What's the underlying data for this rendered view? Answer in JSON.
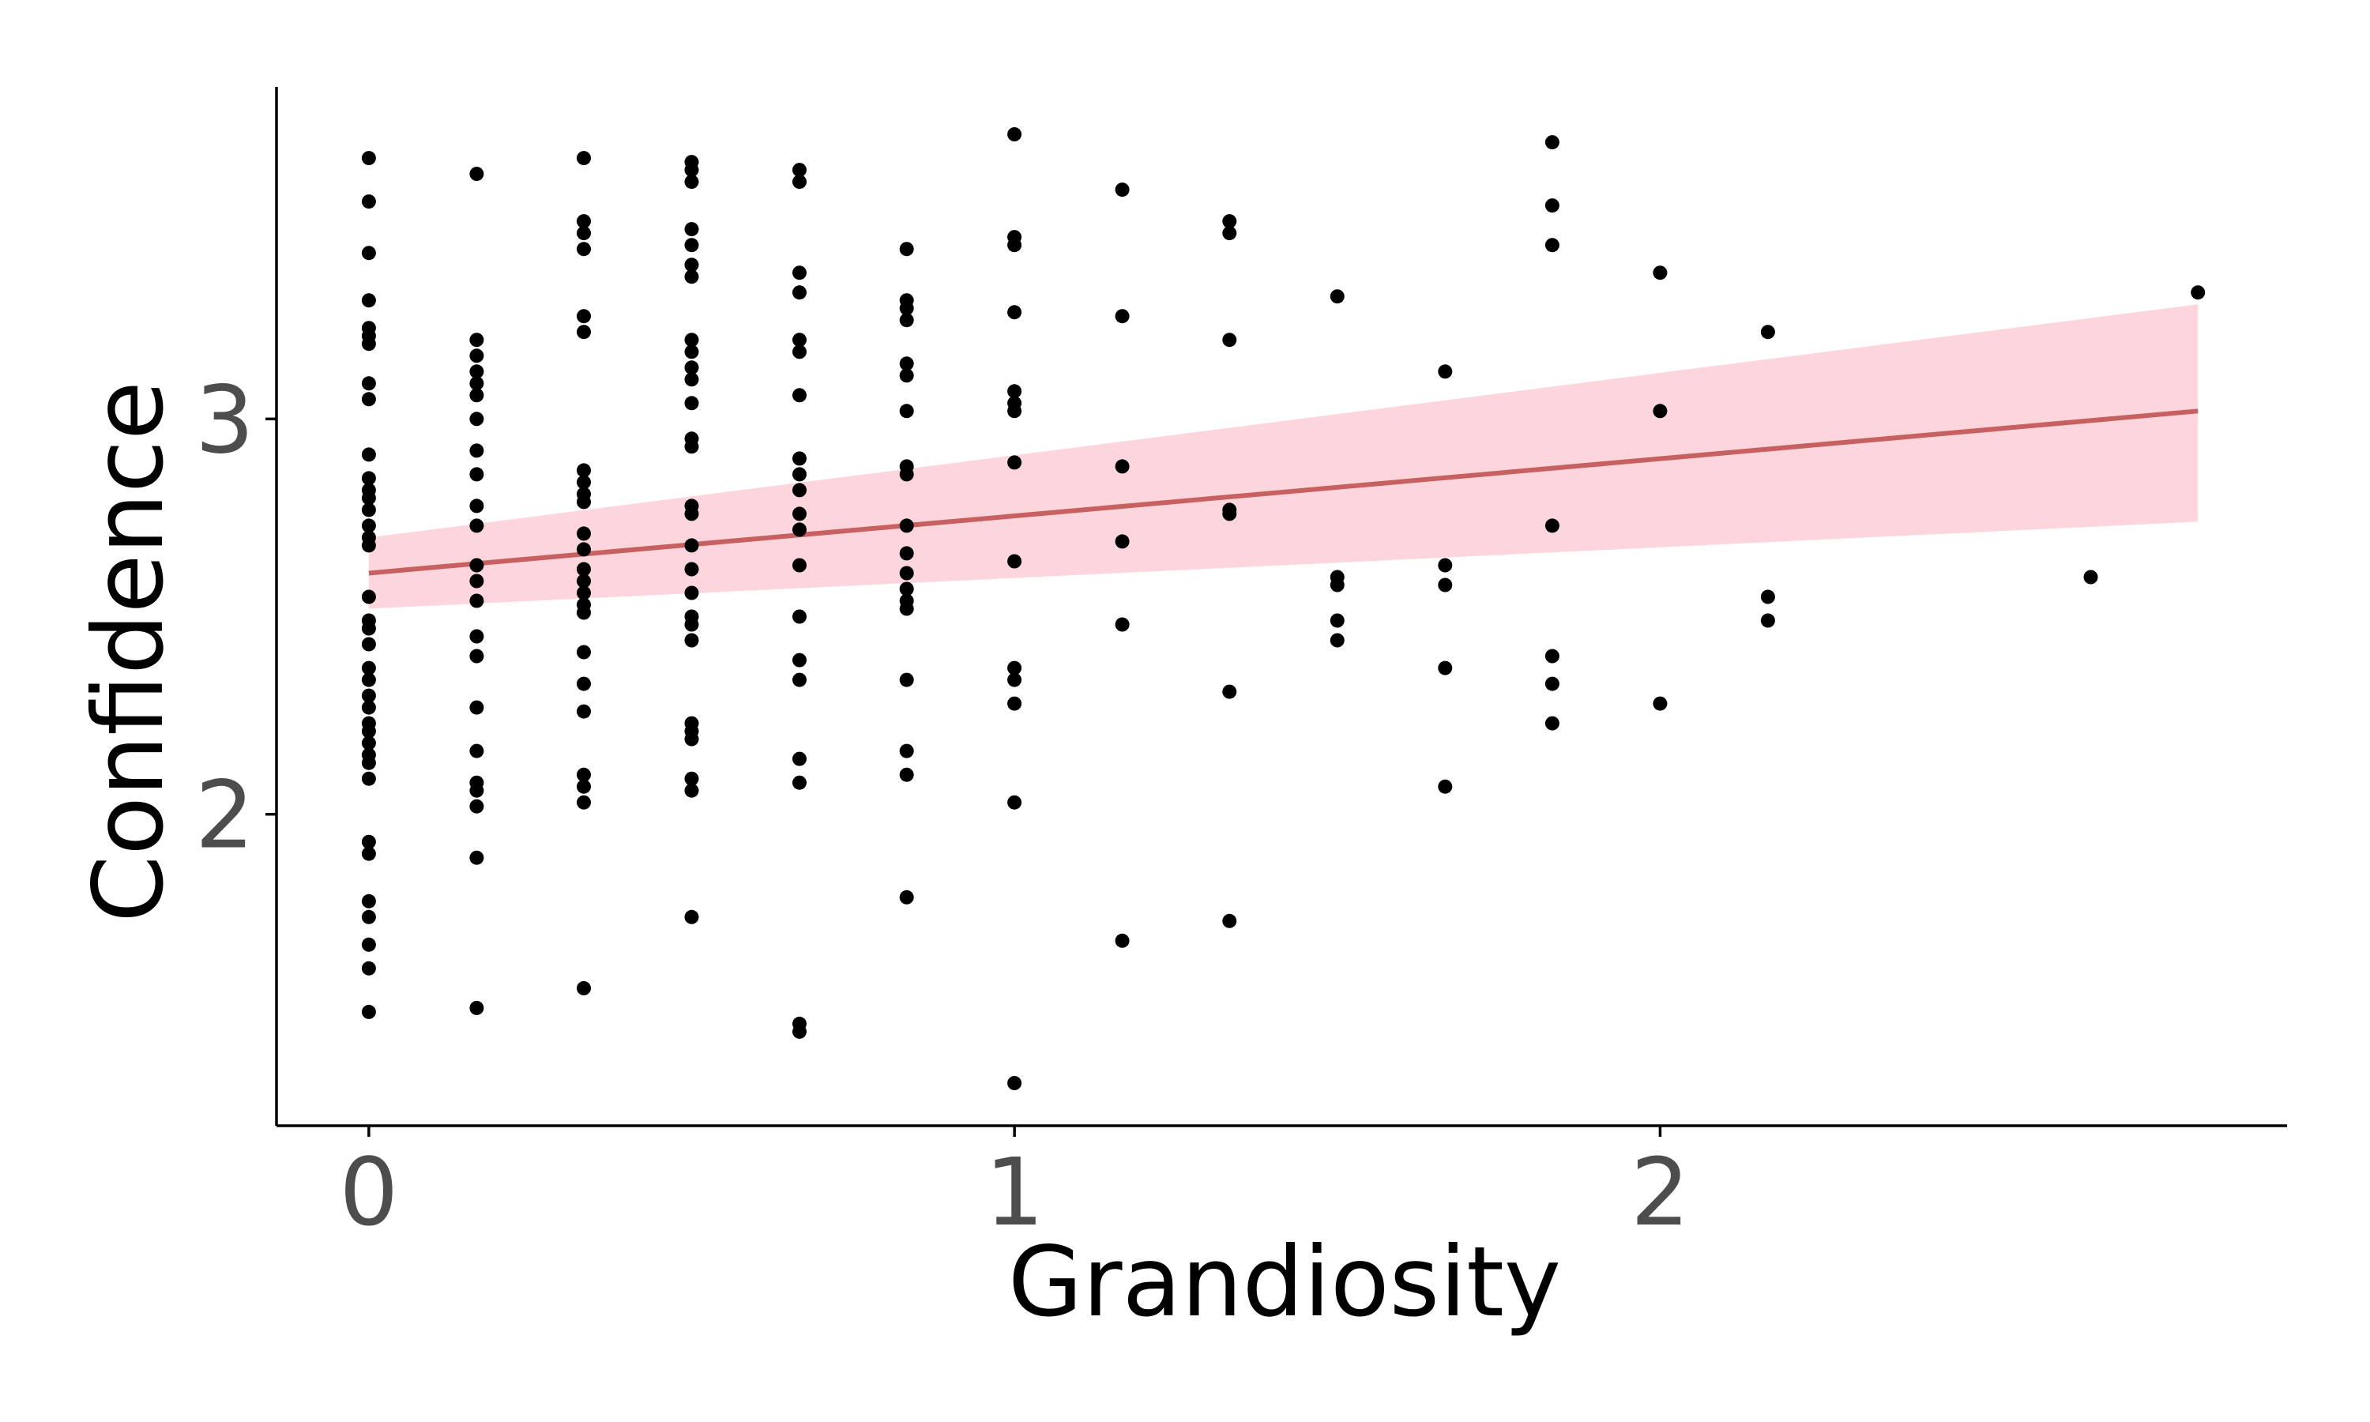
{
  "chart_data": {
    "type": "scatter",
    "title": "",
    "xlabel": "Grandiosity",
    "ylabel": "Confidence",
    "xlim": [
      -0.143,
      2.971
    ],
    "ylim": [
      1.212,
      3.84
    ],
    "x_ticks": [
      0,
      1,
      2
    ],
    "y_ticks": [
      2,
      3
    ],
    "grid": false,
    "legend": "none",
    "colors": {
      "points": "#000000",
      "trend_line": "#c45a5a",
      "confidence_band": "#fdd6dd",
      "axis": "#000000",
      "tick_label": "#4d4d4d"
    },
    "series": [
      {
        "points": [
          [
            0,
            3.66
          ],
          [
            0,
            3.55
          ],
          [
            0,
            3.42
          ],
          [
            0,
            3.3
          ],
          [
            0,
            3.23
          ],
          [
            0,
            3.21
          ],
          [
            0,
            3.19
          ],
          [
            0,
            3.09
          ],
          [
            0,
            3.05
          ],
          [
            0,
            2.91
          ],
          [
            0,
            2.85
          ],
          [
            0,
            2.82
          ],
          [
            0,
            2.8
          ],
          [
            0,
            2.77
          ],
          [
            0,
            2.73
          ],
          [
            0,
            2.7
          ],
          [
            0,
            2.68
          ],
          [
            0,
            2.55
          ],
          [
            0,
            2.49
          ],
          [
            0,
            2.47
          ],
          [
            0,
            2.43
          ],
          [
            0,
            2.37
          ],
          [
            0,
            2.34
          ],
          [
            0,
            2.3
          ],
          [
            0,
            2.27
          ],
          [
            0,
            2.23
          ],
          [
            0,
            2.21
          ],
          [
            0,
            2.18
          ],
          [
            0,
            2.15
          ],
          [
            0,
            2.13
          ],
          [
            0,
            2.09
          ],
          [
            0,
            1.93
          ],
          [
            0,
            1.9
          ],
          [
            0,
            1.78
          ],
          [
            0,
            1.74
          ],
          [
            0,
            1.67
          ],
          [
            0,
            1.61
          ],
          [
            0,
            1.5
          ],
          [
            0.167,
            3.62
          ],
          [
            0.167,
            3.2
          ],
          [
            0.167,
            3.16
          ],
          [
            0.167,
            3.12
          ],
          [
            0.167,
            3.09
          ],
          [
            0.167,
            3.06
          ],
          [
            0.167,
            3.0
          ],
          [
            0.167,
            2.92
          ],
          [
            0.167,
            2.86
          ],
          [
            0.167,
            2.78
          ],
          [
            0.167,
            2.73
          ],
          [
            0.167,
            2.63
          ],
          [
            0.167,
            2.59
          ],
          [
            0.167,
            2.54
          ],
          [
            0.167,
            2.45
          ],
          [
            0.167,
            2.4
          ],
          [
            0.167,
            2.27
          ],
          [
            0.167,
            2.16
          ],
          [
            0.167,
            2.08
          ],
          [
            0.167,
            2.06
          ],
          [
            0.167,
            2.02
          ],
          [
            0.167,
            1.89
          ],
          [
            0.167,
            1.51
          ],
          [
            0.333,
            3.66
          ],
          [
            0.333,
            3.5
          ],
          [
            0.333,
            3.47
          ],
          [
            0.333,
            3.43
          ],
          [
            0.333,
            3.26
          ],
          [
            0.333,
            3.22
          ],
          [
            0.333,
            2.87
          ],
          [
            0.333,
            2.84
          ],
          [
            0.333,
            2.81
          ],
          [
            0.333,
            2.79
          ],
          [
            0.333,
            2.71
          ],
          [
            0.333,
            2.67
          ],
          [
            0.333,
            2.62
          ],
          [
            0.333,
            2.59
          ],
          [
            0.333,
            2.56
          ],
          [
            0.333,
            2.53
          ],
          [
            0.333,
            2.51
          ],
          [
            0.333,
            2.41
          ],
          [
            0.333,
            2.33
          ],
          [
            0.333,
            2.26
          ],
          [
            0.333,
            2.1
          ],
          [
            0.333,
            2.07
          ],
          [
            0.333,
            2.03
          ],
          [
            0.333,
            1.56
          ],
          [
            0.5,
            3.65
          ],
          [
            0.5,
            3.63
          ],
          [
            0.5,
            3.6
          ],
          [
            0.5,
            3.48
          ],
          [
            0.5,
            3.44
          ],
          [
            0.5,
            3.39
          ],
          [
            0.5,
            3.36
          ],
          [
            0.5,
            3.2
          ],
          [
            0.5,
            3.17
          ],
          [
            0.5,
            3.13
          ],
          [
            0.5,
            3.1
          ],
          [
            0.5,
            3.04
          ],
          [
            0.5,
            2.95
          ],
          [
            0.5,
            2.93
          ],
          [
            0.5,
            2.78
          ],
          [
            0.5,
            2.76
          ],
          [
            0.5,
            2.68
          ],
          [
            0.5,
            2.62
          ],
          [
            0.5,
            2.56
          ],
          [
            0.5,
            2.5
          ],
          [
            0.5,
            2.48
          ],
          [
            0.5,
            2.44
          ],
          [
            0.5,
            2.23
          ],
          [
            0.5,
            2.21
          ],
          [
            0.5,
            2.19
          ],
          [
            0.5,
            2.09
          ],
          [
            0.5,
            2.06
          ],
          [
            0.5,
            1.74
          ],
          [
            0.667,
            3.63
          ],
          [
            0.667,
            3.6
          ],
          [
            0.667,
            3.37
          ],
          [
            0.667,
            3.32
          ],
          [
            0.667,
            3.2
          ],
          [
            0.667,
            3.17
          ],
          [
            0.667,
            3.06
          ],
          [
            0.667,
            2.9
          ],
          [
            0.667,
            2.86
          ],
          [
            0.667,
            2.82
          ],
          [
            0.667,
            2.76
          ],
          [
            0.667,
            2.72
          ],
          [
            0.667,
            2.63
          ],
          [
            0.667,
            2.5
          ],
          [
            0.667,
            2.39
          ],
          [
            0.667,
            2.34
          ],
          [
            0.667,
            2.14
          ],
          [
            0.667,
            2.08
          ],
          [
            0.667,
            1.47
          ],
          [
            0.667,
            1.45
          ],
          [
            0.833,
            3.43
          ],
          [
            0.833,
            3.3
          ],
          [
            0.833,
            3.28
          ],
          [
            0.833,
            3.25
          ],
          [
            0.833,
            3.14
          ],
          [
            0.833,
            3.11
          ],
          [
            0.833,
            3.02
          ],
          [
            0.833,
            2.88
          ],
          [
            0.833,
            2.86
          ],
          [
            0.833,
            2.73
          ],
          [
            0.833,
            2.66
          ],
          [
            0.833,
            2.61
          ],
          [
            0.833,
            2.57
          ],
          [
            0.833,
            2.54
          ],
          [
            0.833,
            2.52
          ],
          [
            0.833,
            2.34
          ],
          [
            0.833,
            2.16
          ],
          [
            0.833,
            2.1
          ],
          [
            0.833,
            1.79
          ],
          [
            1.0,
            3.72
          ],
          [
            1.0,
            3.46
          ],
          [
            1.0,
            3.44
          ],
          [
            1.0,
            3.27
          ],
          [
            1.0,
            3.07
          ],
          [
            1.0,
            3.04
          ],
          [
            1.0,
            3.02
          ],
          [
            1.0,
            2.89
          ],
          [
            1.0,
            2.64
          ],
          [
            1.0,
            2.37
          ],
          [
            1.0,
            2.34
          ],
          [
            1.0,
            2.28
          ],
          [
            1.0,
            2.03
          ],
          [
            1.0,
            1.32
          ],
          [
            1.167,
            3.58
          ],
          [
            1.167,
            3.26
          ],
          [
            1.167,
            2.88
          ],
          [
            1.167,
            2.69
          ],
          [
            1.167,
            2.48
          ],
          [
            1.167,
            1.68
          ],
          [
            1.333,
            3.5
          ],
          [
            1.333,
            3.47
          ],
          [
            1.333,
            3.2
          ],
          [
            1.333,
            2.77
          ],
          [
            1.333,
            2.76
          ],
          [
            1.333,
            2.31
          ],
          [
            1.333,
            1.73
          ],
          [
            1.5,
            3.31
          ],
          [
            1.5,
            2.6
          ],
          [
            1.5,
            2.58
          ],
          [
            1.5,
            2.49
          ],
          [
            1.5,
            2.44
          ],
          [
            1.667,
            3.12
          ],
          [
            1.667,
            2.63
          ],
          [
            1.667,
            2.58
          ],
          [
            1.667,
            2.37
          ],
          [
            1.667,
            2.07
          ],
          [
            1.833,
            3.7
          ],
          [
            1.833,
            3.54
          ],
          [
            1.833,
            3.44
          ],
          [
            1.833,
            2.73
          ],
          [
            1.833,
            2.4
          ],
          [
            1.833,
            2.33
          ],
          [
            1.833,
            2.23
          ],
          [
            2.0,
            3.37
          ],
          [
            2.0,
            3.02
          ],
          [
            2.0,
            2.28
          ],
          [
            2.167,
            3.22
          ],
          [
            2.167,
            2.55
          ],
          [
            2.167,
            2.49
          ],
          [
            2.667,
            2.6
          ],
          [
            2.833,
            3.32
          ]
        ]
      }
    ],
    "trend": {
      "x": [
        0,
        2.833
      ],
      "y": [
        2.61,
        3.02
      ],
      "ci_lower": [
        2.52,
        2.74
      ],
      "ci_upper": [
        2.7,
        3.29
      ]
    }
  }
}
